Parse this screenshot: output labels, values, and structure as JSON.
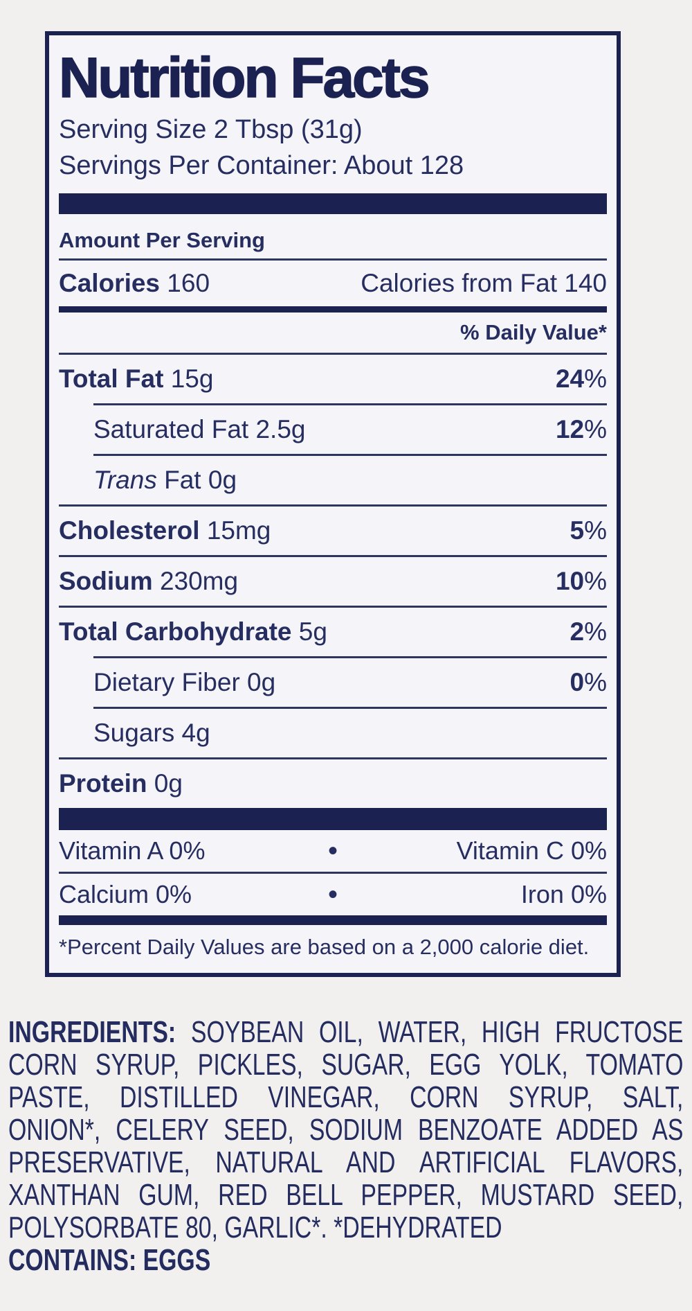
{
  "colors": {
    "navy_text": "#262d60",
    "navy_heavy": "#1b2150",
    "hairline": "#2e355f",
    "label_background": "#f5f4f8",
    "page_background": "#f1f0ee"
  },
  "label": {
    "title": "Nutrition Facts",
    "serving_size": "Serving Size 2 Tbsp (31g)",
    "servings_per_container": "Servings Per Container: About 128",
    "amount_per_serving": "Amount Per Serving",
    "calories": {
      "label": "Calories",
      "value": "160",
      "from_fat": "Calories from Fat 140"
    },
    "daily_value_header": "% Daily Value*",
    "percent_sign": "%",
    "bullet": "•",
    "rows": [
      {
        "italic_prefix": "",
        "name": "Total Fat",
        "amount": "15g",
        "dv": "24",
        "bold": true,
        "indent": false,
        "divider_after": "indent"
      },
      {
        "italic_prefix": "",
        "name": "Saturated Fat",
        "amount": "2.5g",
        "dv": "12",
        "bold": false,
        "indent": true,
        "divider_after": "indent"
      },
      {
        "italic_prefix": "Trans",
        "name": " Fat",
        "amount": "0g",
        "dv": null,
        "bold": false,
        "indent": true,
        "divider_after": "full"
      },
      {
        "italic_prefix": "",
        "name": "Cholesterol",
        "amount": "15mg",
        "dv": "5",
        "bold": true,
        "indent": false,
        "divider_after": "full"
      },
      {
        "italic_prefix": "",
        "name": "Sodium",
        "amount": "230mg",
        "dv": "10",
        "bold": true,
        "indent": false,
        "divider_after": "full"
      },
      {
        "italic_prefix": "",
        "name": "Total Carbohydrate",
        "amount": "5g",
        "dv": "2",
        "bold": true,
        "indent": false,
        "divider_after": "indent"
      },
      {
        "italic_prefix": "",
        "name": "Dietary Fiber",
        "amount": "0g",
        "dv": "0",
        "bold": false,
        "indent": true,
        "divider_after": "indent"
      },
      {
        "italic_prefix": "",
        "name": "Sugars",
        "amount": "4g",
        "dv": null,
        "bold": false,
        "indent": true,
        "divider_after": "full"
      },
      {
        "italic_prefix": "",
        "name": "Protein",
        "amount": "0g",
        "dv": null,
        "bold": true,
        "indent": false,
        "divider_after": "none"
      }
    ],
    "micronutrients": [
      {
        "left": "Vitamin A 0%",
        "right": "Vitamin C 0%"
      },
      {
        "left": "Calcium 0%",
        "right": "Iron 0%"
      }
    ],
    "footnote": "*Percent Daily Values are based on a 2,000 calorie diet."
  },
  "ingredients": {
    "lines": [
      {
        "bold": "INGREDIENTS:",
        "rest": " SOYBEAN OIL, WATER, HIGH FRUCTOSE",
        "last": false
      },
      {
        "bold": "",
        "rest": "CORN SYRUP, PICKLES, SUGAR, EGG YOLK, TOMATO",
        "last": false
      },
      {
        "bold": "",
        "rest": "PASTE, DISTILLED VINEGAR, CORN SYRUP, SALT,",
        "last": false
      },
      {
        "bold": "",
        "rest": "ONION*, CELERY SEED, SODIUM BENZOATE ADDED AS",
        "last": false
      },
      {
        "bold": "",
        "rest": "PRESERVATIVE, NATURAL AND ARTIFICIAL FLAVORS,",
        "last": false
      },
      {
        "bold": "",
        "rest": "XANTHAN GUM, RED BELL PEPPER, MUSTARD SEED,",
        "last": false
      },
      {
        "bold": "",
        "rest": "POLYSORBATE 80, GARLIC*. *DEHYDRATED",
        "last": true
      }
    ],
    "contains": "CONTAINS: EGGS"
  }
}
